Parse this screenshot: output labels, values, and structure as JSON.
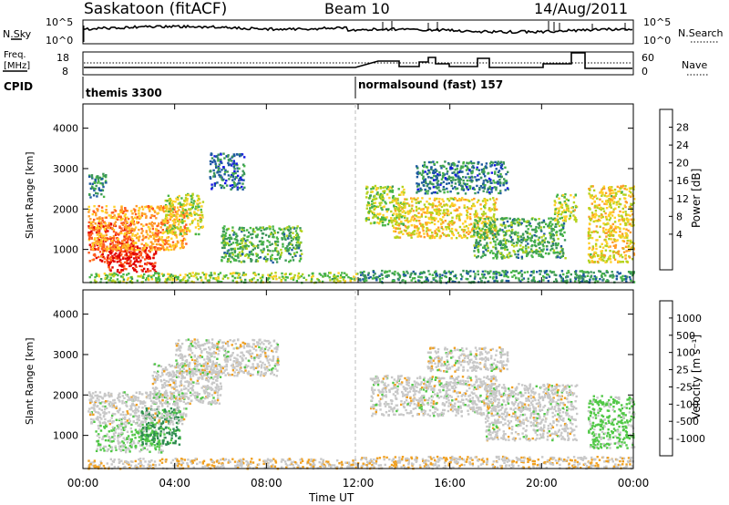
{
  "header": {
    "station": "Saskatoon (fitACF)",
    "beam": "Beam 10",
    "date": "14/Aug/2011"
  },
  "noise_panel": {
    "left_label": "N.Sky",
    "left_ticks": [
      "10^5",
      "10^0"
    ],
    "right_ticks": [
      "10^5",
      "10^0"
    ],
    "right_label": "N.Search"
  },
  "freq_panel": {
    "left_label_1": "Freq.",
    "left_label_2": "[MHz]",
    "left_ticks": [
      "18",
      "8"
    ],
    "right_ticks": [
      "60",
      "0"
    ],
    "right_label": "Nave"
  },
  "cpid": {
    "label": "CPID",
    "mode1": "themis 3300",
    "mode2": "normalsound (fast) 157"
  },
  "axes": {
    "ylabel": "Slant Range [km]",
    "yticks": [
      "4000",
      "3000",
      "2000",
      "1000"
    ],
    "xticks": [
      "00:00",
      "04:00",
      "08:00",
      "12:00",
      "16:00",
      "20:00",
      "00:00"
    ],
    "xlabel": "Time UT"
  },
  "colorbars": {
    "power": {
      "label": "Power [dB]",
      "ticks": [
        "28",
        "24",
        "20",
        "16",
        "12",
        "8",
        "4"
      ],
      "colors": [
        "#e00000",
        "#ff5a1e",
        "#ff9b28",
        "#ffd028",
        "#b4d21e",
        "#46b446",
        "#3c965a",
        "#1e5aa0",
        "#1414e6"
      ]
    },
    "velocity": {
      "label": "Velocity [m s⁻¹]",
      "ticks": [
        "1000",
        "500",
        "100",
        "25",
        "-25",
        "-100",
        "-500",
        "-1000"
      ],
      "colors": [
        "#1e3cb4",
        "#2a70a0",
        "#2e8c50",
        "#50c846",
        "#c8c8c8",
        "#f0a020",
        "#ff6e14",
        "#ff3c0a",
        "#e00000"
      ]
    }
  },
  "chart_data": [
    {
      "type": "heatmap",
      "title": "Power [dB]",
      "xlabel": "Time UT",
      "ylabel": "Slant Range [km]",
      "xlim": [
        0,
        24
      ],
      "ylim": [
        180,
        4600
      ],
      "clim": [
        0,
        30
      ],
      "regions": [
        {
          "t": [
            0.2,
            2.2
          ],
          "r": [
            700,
            1700
          ],
          "value": 28
        },
        {
          "t": [
            1.0,
            3.2
          ],
          "r": [
            450,
            1100
          ],
          "value": 30
        },
        {
          "t": [
            0.2,
            4.5
          ],
          "r": [
            1000,
            2100
          ],
          "value": 22
        },
        {
          "t": [
            3.5,
            5.2
          ],
          "r": [
            1400,
            2400
          ],
          "value": 16
        },
        {
          "t": [
            0.2,
            1.0
          ],
          "r": [
            2300,
            2900
          ],
          "value": 8
        },
        {
          "t": [
            5.5,
            7.0
          ],
          "r": [
            2500,
            3400
          ],
          "value": 5
        },
        {
          "t": [
            6.0,
            9.5
          ],
          "r": [
            700,
            1600
          ],
          "value": 10
        },
        {
          "t": [
            0.2,
            12.0
          ],
          "r": [
            200,
            450
          ],
          "value": 14
        },
        {
          "t": [
            12.3,
            14.0
          ],
          "r": [
            1600,
            2600
          ],
          "value": 14
        },
        {
          "t": [
            13.5,
            18.0
          ],
          "r": [
            1300,
            2300
          ],
          "value": 18
        },
        {
          "t": [
            14.5,
            18.5
          ],
          "r": [
            2400,
            3200
          ],
          "value": 6
        },
        {
          "t": [
            17.0,
            21.0
          ],
          "r": [
            800,
            1800
          ],
          "value": 10
        },
        {
          "t": [
            20.5,
            21.5
          ],
          "r": [
            1700,
            2400
          ],
          "value": 16
        },
        {
          "t": [
            22.0,
            24.0
          ],
          "r": [
            700,
            2600
          ],
          "value": 18
        },
        {
          "t": [
            12.0,
            24.0
          ],
          "r": [
            200,
            500
          ],
          "value": 8
        }
      ]
    },
    {
      "type": "heatmap",
      "title": "Velocity [m s⁻¹]",
      "xlabel": "Time UT",
      "ylabel": "Slant Range [km]",
      "xlim": [
        0,
        24
      ],
      "ylim": [
        180,
        4600
      ],
      "clim": [
        -1000,
        1000
      ],
      "regions": [
        {
          "t": [
            0.5,
            3.5
          ],
          "r": [
            600,
            1300
          ],
          "value": 150
        },
        {
          "t": [
            2.5,
            4.2
          ],
          "r": [
            800,
            1700
          ],
          "value": 450
        },
        {
          "t": [
            0.2,
            4.5
          ],
          "r": [
            1300,
            2100
          ],
          "value": 0
        },
        {
          "t": [
            3.0,
            6.0
          ],
          "r": [
            1800,
            2800
          ],
          "value": 0
        },
        {
          "t": [
            4.0,
            8.5
          ],
          "r": [
            2500,
            3400
          ],
          "value": 0
        },
        {
          "t": [
            0.2,
            12.0
          ],
          "r": [
            200,
            450
          ],
          "value": -80
        },
        {
          "t": [
            12.5,
            18.0
          ],
          "r": [
            1500,
            2500
          ],
          "value": 0
        },
        {
          "t": [
            15.0,
            18.5
          ],
          "r": [
            2600,
            3200
          ],
          "value": 0
        },
        {
          "t": [
            17.5,
            21.5
          ],
          "r": [
            900,
            2300
          ],
          "value": 0
        },
        {
          "t": [
            22.0,
            24.0
          ],
          "r": [
            700,
            2000
          ],
          "value": 200
        },
        {
          "t": [
            12.0,
            24.0
          ],
          "r": [
            200,
            500
          ],
          "value": -80
        }
      ]
    }
  ]
}
